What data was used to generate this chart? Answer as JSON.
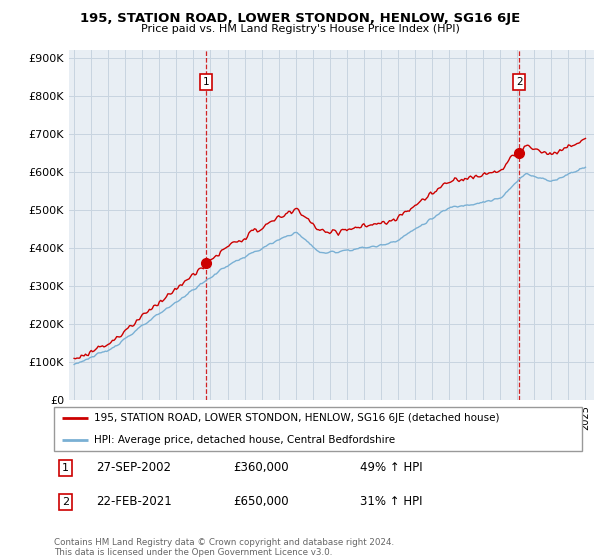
{
  "title1": "195, STATION ROAD, LOWER STONDON, HENLOW, SG16 6JE",
  "title2": "Price paid vs. HM Land Registry's House Price Index (HPI)",
  "yticks": [
    0,
    100000,
    200000,
    300000,
    400000,
    500000,
    600000,
    700000,
    800000,
    900000
  ],
  "ytick_labels": [
    "£0",
    "£100K",
    "£200K",
    "£300K",
    "£400K",
    "£500K",
    "£600K",
    "£700K",
    "£800K",
    "£900K"
  ],
  "ylim": [
    0,
    920000
  ],
  "xlim_start": 1994.7,
  "xlim_end": 2025.5,
  "sale1_x": 2002.75,
  "sale1_y": 360000,
  "sale2_x": 2021.12,
  "sale2_y": 650000,
  "sale_color": "#cc0000",
  "hpi_color": "#7ab0d4",
  "bg_color": "#e8eef4",
  "legend_sale": "195, STATION ROAD, LOWER STONDON, HENLOW, SG16 6JE (detached house)",
  "legend_hpi": "HPI: Average price, detached house, Central Bedfordshire",
  "annotation1_date": "27-SEP-2002",
  "annotation1_price": "£360,000",
  "annotation1_hpi": "49% ↑ HPI",
  "annotation2_date": "22-FEB-2021",
  "annotation2_price": "£650,000",
  "annotation2_hpi": "31% ↑ HPI",
  "footer": "Contains HM Land Registry data © Crown copyright and database right 2024.\nThis data is licensed under the Open Government Licence v3.0.",
  "grid_color": "#c8d4e0",
  "label_box_color": "#cc0000"
}
